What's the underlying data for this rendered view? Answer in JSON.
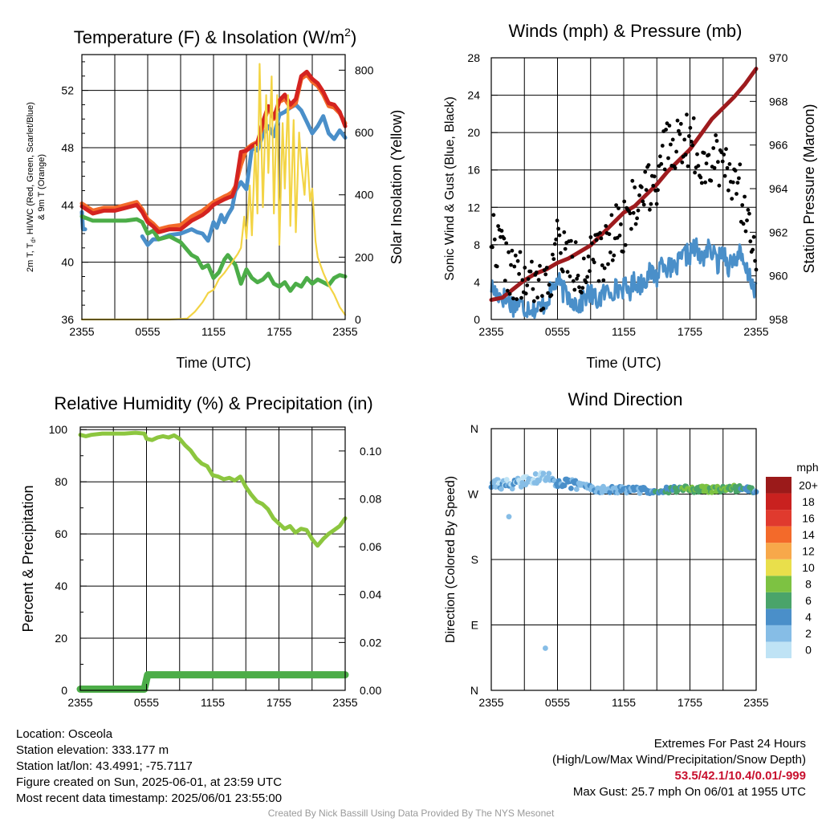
{
  "chart_data": [
    {
      "id": "temperature",
      "type": "line",
      "title": "Temperature (F) & Insolation (W/m",
      "title_sup": "2",
      "title_end": ")",
      "xlabel": "Time (UTC)",
      "ylabel_left_1": "2m T, T",
      "ylabel_left_sub": "d",
      "ylabel_left_2": ", HI/WC (Red, Green, Scarlet/Blue)",
      "ylabel_left_line2": "& 9m T (Orange)",
      "ylabel_right": "Solar Insolation (Yellow)",
      "xticks": [
        "2355",
        "0555",
        "1155",
        "1755",
        "2355"
      ],
      "xlim": [
        0,
        24
      ],
      "ylim": [
        36,
        54.5
      ],
      "yticks": [
        "36",
        "40",
        "44",
        "48",
        "52"
      ],
      "ylim_right": [
        0,
        850
      ],
      "yticks_right": [
        "0",
        "200",
        "400",
        "600",
        "800"
      ],
      "grid": true,
      "series": [
        {
          "color": "#4a8fc9",
          "x": [
            0,
            0.1,
            0.3,
            1,
            2,
            3,
            4,
            5,
            5.5,
            6,
            6.5,
            7,
            8,
            9,
            10,
            10.5,
            11,
            11.5,
            12,
            12.3,
            12.7,
            13,
            13.3,
            13.7,
            14,
            14.5,
            15,
            15.5,
            16,
            16.5,
            17,
            17.5,
            18,
            18.5,
            19,
            19.5,
            20,
            20.5,
            21,
            21.5,
            22,
            22.5,
            23,
            23.5,
            24
          ],
          "y": [
            43.5,
            42.3,
            42.3,
            null,
            null,
            null,
            null,
            null,
            41.8,
            41.2,
            41.6,
            41.6,
            41.9,
            42.0,
            42.3,
            42.1,
            42.0,
            41.5,
            42.8,
            42.4,
            43.3,
            42.8,
            43.3,
            43.8,
            45.0,
            45.6,
            45.1,
            48.0,
            47.8,
            48.9,
            49.5,
            48.8,
            50.3,
            50.5,
            50.8,
            51.0,
            50.6,
            49.8,
            49.0,
            49.5,
            50.2,
            49.0,
            48.6,
            49.2,
            48.7
          ]
        },
        {
          "color": "#4cad48",
          "x": [
            0,
            1,
            2,
            3,
            4,
            5,
            5.5,
            6,
            6.5,
            7,
            8,
            9,
            10,
            10.5,
            11,
            11.5,
            12,
            12.5,
            13,
            13.3,
            14,
            14.5,
            15,
            15.5,
            16,
            16.5,
            17,
            17.5,
            18,
            18.5,
            19,
            19.5,
            20,
            20.5,
            21,
            21.5,
            22,
            22.5,
            23,
            23.5,
            24
          ],
          "y": [
            43.2,
            42.9,
            42.9,
            42.9,
            42.9,
            43.0,
            42.8,
            42.0,
            42.2,
            41.6,
            41.8,
            41.4,
            40.5,
            40.3,
            39.6,
            39.8,
            38.9,
            39.3,
            40.2,
            40.5,
            39.8,
            38.5,
            39.5,
            38.9,
            38.6,
            38.8,
            39.2,
            38.5,
            38.3,
            38.6,
            38.0,
            38.5,
            38.3,
            38.9,
            38.5,
            38.8,
            38.6,
            38.4,
            38.9,
            39.1,
            39.0
          ]
        },
        {
          "color": "#f36a2a",
          "x": [
            0,
            1,
            2,
            3,
            4,
            5,
            5.5,
            6,
            6.5,
            7,
            8,
            9,
            10,
            10.5,
            11,
            11.5,
            12,
            12.5,
            13,
            13.3,
            13.7,
            14,
            14.5,
            15,
            15.5,
            16,
            16.5,
            17,
            17.5,
            18,
            18.5,
            19,
            19.5,
            20,
            20.5,
            21,
            21.5,
            22,
            22.5,
            23,
            23.5,
            24
          ],
          "y": [
            44.1,
            43.6,
            43.8,
            43.8,
            44.0,
            44.2,
            43.7,
            43.0,
            42.7,
            42.3,
            42.5,
            42.6,
            43.2,
            43.4,
            43.6,
            43.9,
            44.2,
            44.4,
            44.6,
            44.7,
            44.9,
            45.3,
            46.8,
            47.9,
            48.2,
            48.4,
            49.5,
            50.8,
            50.0,
            51.2,
            51.4,
            50.8,
            51.1,
            52.8,
            53.1,
            52.6,
            52.3,
            51.7,
            50.9,
            50.8,
            50.4,
            49.7
          ]
        },
        {
          "color": "#d42320",
          "x": [
            0,
            1,
            2,
            3,
            4,
            5,
            5.5,
            6,
            6.5,
            7,
            8,
            9,
            10,
            10.5,
            11,
            11.5,
            12,
            12.5,
            13,
            13.3,
            13.7,
            14,
            14.5,
            15,
            15.5,
            16,
            16.5,
            17,
            17.5,
            18,
            18.5,
            19,
            19.5,
            20,
            20.5,
            21,
            21.5,
            22,
            22.5,
            23,
            23.5,
            24
          ],
          "y": [
            43.9,
            43.4,
            43.6,
            43.6,
            43.8,
            44.0,
            43.5,
            42.8,
            42.5,
            42.1,
            42.3,
            42.3,
            42.9,
            43.1,
            43.3,
            43.6,
            44.0,
            44.2,
            44.4,
            44.5,
            44.6,
            45.2,
            47.7,
            47.8,
            48.1,
            48.3,
            49.8,
            50.9,
            50.1,
            51.3,
            51.7,
            51.0,
            51.4,
            53.0,
            53.3,
            52.8,
            52.5,
            51.9,
            51.1,
            51.0,
            50.5,
            49.5
          ]
        },
        {
          "color": "#f3d445",
          "axis": "right",
          "x": [
            0,
            3,
            6,
            8,
            9.6,
            10.3,
            11,
            11.5,
            12,
            12.5,
            13,
            13.5,
            13.8,
            14.2,
            14.5,
            14.8,
            15,
            15.3,
            15.5,
            15.8,
            16,
            16.2,
            16.5,
            16.8,
            17,
            17.3,
            17.5,
            17.8,
            18,
            18.3,
            18.5,
            18.8,
            19,
            19.3,
            19.5,
            19.8,
            20,
            20.3,
            20.5,
            20.8,
            21,
            21.3,
            21.5,
            21.8,
            22,
            22.5,
            23,
            23.5,
            24
          ],
          "y": [
            0,
            0,
            0,
            0,
            3,
            25,
            55,
            85,
            95,
            130,
            150,
            175,
            190,
            210,
            230,
            330,
            260,
            430,
            270,
            560,
            340,
            820,
            360,
            720,
            470,
            780,
            340,
            720,
            240,
            630,
            420,
            720,
            300,
            640,
            280,
            600,
            500,
            400,
            550,
            380,
            420,
            250,
            200,
            170,
            150,
            110,
            80,
            40,
            15
          ]
        }
      ]
    },
    {
      "id": "winds",
      "type": "scatter",
      "title": "Winds (mph) & Pressure (mb)",
      "xlabel": "Time (UTC)",
      "ylabel": "Sonic Wind & Gust (Blue, Black)",
      "ylabel_right": "Station Pressure (Maroon)",
      "xticks": [
        "2355",
        "0555",
        "1155",
        "1755",
        "2355"
      ],
      "xlim": [
        0,
        24
      ],
      "ylim": [
        0,
        28
      ],
      "yticks": [
        "0",
        "4",
        "8",
        "12",
        "16",
        "20",
        "24",
        "28"
      ],
      "ylim_right": [
        958,
        970
      ],
      "yticks_right": [
        "958",
        "960",
        "962",
        "964",
        "966",
        "968",
        "970"
      ],
      "grid": true,
      "gust_seed": 17,
      "series": [
        {
          "color": "#4a8fc9",
          "x": [
            0,
            0.5,
            1,
            1.5,
            2,
            2.5,
            3,
            3.5,
            4,
            4.5,
            5,
            5.5,
            6,
            6.5,
            7,
            7.5,
            8,
            8.5,
            9,
            9.5,
            10,
            10.5,
            11,
            11.5,
            12,
            12.5,
            13,
            13.5,
            14,
            14.5,
            15,
            15.5,
            16,
            16.5,
            17,
            17.5,
            18,
            18.5,
            19,
            19.5,
            20,
            20.5,
            21,
            21.5,
            22,
            22.5,
            23,
            23.5,
            24
          ],
          "y": [
            3.5,
            2.8,
            2.5,
            2.0,
            1.5,
            1.8,
            1.2,
            1.5,
            1.0,
            1.3,
            2.0,
            3.2,
            4.2,
            3.0,
            2.5,
            2.0,
            1.5,
            2.5,
            2.8,
            2.0,
            2.5,
            3.0,
            3.2,
            3.3,
            3.5,
            3.0,
            4.2,
            3.8,
            4.5,
            5.0,
            4.5,
            6.5,
            5.5,
            5.2,
            6.0,
            6.8,
            7.0,
            7.8,
            6.2,
            7.5,
            7.2,
            6.0,
            7.5,
            5.8,
            6.5,
            7.0,
            5.2,
            4.5,
            2.8
          ]
        },
        {
          "color": "#9e1b1e",
          "axis": "right",
          "x": [
            0,
            1,
            2,
            3,
            4,
            5,
            6,
            7,
            8,
            9,
            10,
            11,
            12,
            13,
            14,
            15,
            16,
            17,
            18,
            19,
            20,
            21,
            22,
            23,
            24
          ],
          "y": [
            958.9,
            959.0,
            959.4,
            959.8,
            960.1,
            960.3,
            960.6,
            960.8,
            961.1,
            961.4,
            961.9,
            962.4,
            962.9,
            963.2,
            963.7,
            964.2,
            964.8,
            965.3,
            965.8,
            966.5,
            967.2,
            967.7,
            968.2,
            968.8,
            969.5
          ]
        },
        {
          "color": "#000000",
          "kind": "gust",
          "x": [
            0,
            1,
            2,
            3,
            4,
            5,
            6,
            7,
            8,
            9,
            10,
            11,
            12,
            13,
            14,
            15,
            16,
            17,
            18,
            19,
            20,
            21,
            22,
            23,
            24
          ],
          "y": [
            9,
            7,
            4,
            4,
            3,
            3,
            8,
            6,
            5,
            6,
            6,
            9,
            10,
            12,
            14,
            15,
            18,
            19,
            19,
            17,
            17,
            17,
            15,
            12,
            8
          ]
        }
      ]
    },
    {
      "id": "humidity",
      "type": "line",
      "title": "Relative Humidity (%) & Precipitation (in)",
      "ylabel": "Percent & Precipitation",
      "xticks": [
        "2355",
        "0555",
        "1155",
        "1755",
        "2355"
      ],
      "xlim": [
        0,
        24
      ],
      "ylim": [
        0,
        101
      ],
      "yticks": [
        "0",
        "20",
        "40",
        "60",
        "80",
        "100"
      ],
      "ylim_right": [
        0,
        0.11
      ],
      "yticks_right": [
        "0.00",
        "0.02",
        "0.04",
        "0.06",
        "0.08",
        "0.10"
      ],
      "grid": true,
      "series": [
        {
          "color": "#8cc63f",
          "x": [
            0,
            0.5,
            1,
            2,
            3,
            4,
            5,
            5.8,
            6,
            6.5,
            7,
            7.5,
            8,
            8.5,
            9,
            9.5,
            10,
            10.5,
            11,
            11.5,
            12,
            12.5,
            13,
            13.5,
            14,
            14.5,
            15,
            15.5,
            16,
            16.5,
            17,
            17.5,
            18,
            18.5,
            19,
            19.5,
            20,
            20.5,
            21,
            21.5,
            22,
            22.5,
            23,
            23.5,
            24
          ],
          "y": [
            98,
            97.5,
            98,
            98.5,
            98.5,
            98.5,
            98.8,
            98.5,
            96.5,
            96,
            97,
            97.5,
            97,
            97.8,
            96.5,
            94,
            92,
            89,
            87,
            86,
            82.5,
            82,
            81,
            81.5,
            80.5,
            82,
            78,
            75,
            72.5,
            71.5,
            69.5,
            66,
            64,
            62,
            63,
            60.5,
            62,
            61.5,
            58,
            55.5,
            58,
            60,
            61.5,
            63,
            66
          ]
        },
        {
          "color": "#4cad48",
          "axis": "right",
          "x": [
            0,
            5.8,
            6.1,
            6.4,
            24
          ],
          "y": [
            0.0005,
            0.0005,
            0.0065,
            0.0065,
            0.0065
          ]
        }
      ]
    },
    {
      "id": "wind_direction",
      "type": "scatter",
      "title": "Wind Direction",
      "ylabel": "Direction (Colored By Speed)",
      "xticks": [
        "2355",
        "0555",
        "1155",
        "1755",
        "2355"
      ],
      "xlim": [
        0,
        24
      ],
      "ylim": [
        0,
        360
      ],
      "yticks": [
        "N",
        "E",
        "S",
        "W",
        "N"
      ],
      "grid": true,
      "dir_seed": 29,
      "colorbar": {
        "title": "mph",
        "labels": [
          "0",
          "2",
          "4",
          "6",
          "8",
          "10",
          "12",
          "14",
          "16",
          "18",
          "20+"
        ],
        "colors": [
          "#bfe3f5",
          "#86bde6",
          "#4a8fc9",
          "#4aa46a",
          "#7dc242",
          "#e9df4b",
          "#f7a84a",
          "#f36a2a",
          "#e03a2e",
          "#c9211f",
          "#9b1a1a"
        ]
      },
      "series": [
        {
          "kind": "dir",
          "x": [
            0,
            2,
            4,
            5,
            6,
            8,
            10,
            12,
            14,
            16,
            18,
            20,
            22,
            24
          ],
          "y": [
            283,
            284,
            291,
            294,
            286,
            282,
            276,
            276,
            275,
            276,
            277,
            276,
            278,
            275
          ],
          "speed": [
            2.5,
            2.0,
            1.0,
            1.5,
            4.0,
            2.5,
            2.5,
            3.0,
            4.0,
            5.0,
            7.0,
            7.5,
            6.5,
            4.0
          ]
        },
        {
          "kind": "outlier",
          "x": [
            1.6,
            4.9
          ],
          "y": [
            239,
            58
          ],
          "speed": [
            1.2,
            1.0
          ]
        }
      ]
    }
  ],
  "info": {
    "location": "Location: Osceola",
    "elevation": "Station elevation: 333.177 m",
    "latlon": "Station lat/lon: 43.4991; -75.7117",
    "created": "Figure created on Sun, 2025-06-01, at 23:59 UTC",
    "recent": "Most recent data timestamp: 2025/06/01 23:55:00"
  },
  "extremes": {
    "title": "Extremes For Past 24 Hours",
    "subtitle": "(High/Low/Max Wind/Precipitation/Snow Depth)",
    "values": "53.5/42.1/10.4/0.01/-999",
    "gust": "Max Gust: 25.7 mph On 06/01 at 1955 UTC"
  },
  "credit": "Created By Nick Bassill Using Data Provided By The NYS Mesonet"
}
